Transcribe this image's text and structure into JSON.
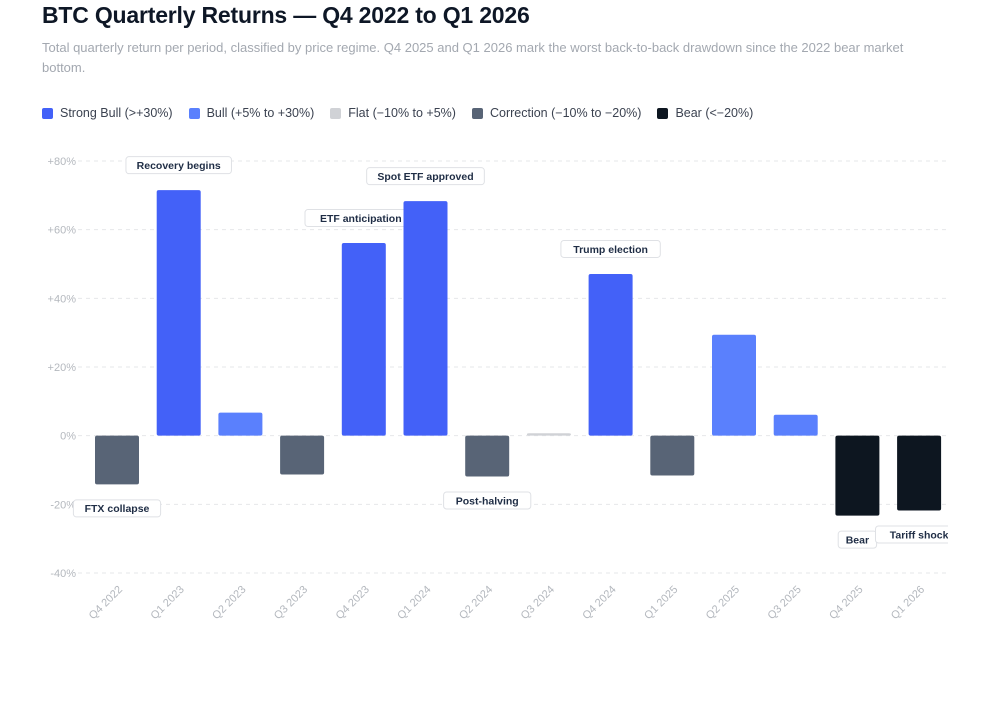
{
  "title": "BTC Quarterly Returns — Q4 2022 to Q1 2026",
  "subtitle": "Total quarterly return per period, classified by price regime. Q4 2025 and Q1 2026 mark the worst back-to-back drawdown since the 2022 bear market bottom.",
  "legend": [
    {
      "label": "Strong Bull (>+30%)",
      "color": "#4361f8"
    },
    {
      "label": "Bull (+5% to +30%)",
      "color": "#5a80fd"
    },
    {
      "label": "Flat (−10% to +5%)",
      "color": "#d0d2d6"
    },
    {
      "label": "Correction (−10% to −20%)",
      "color": "#586476"
    },
    {
      "label": "Bear (<−20%)",
      "color": "#0d1620"
    }
  ],
  "chart_data": {
    "type": "bar",
    "categories": [
      "Q4 2022",
      "Q1 2023",
      "Q2 2023",
      "Q3 2023",
      "Q4 2023",
      "Q1 2024",
      "Q2 2024",
      "Q3 2024",
      "Q4 2024",
      "Q1 2025",
      "Q2 2025",
      "Q3 2025",
      "Q4 2025",
      "Q1 2026"
    ],
    "values": [
      -14.2,
      71.5,
      6.7,
      -11.3,
      56.1,
      68.3,
      -11.9,
      0.7,
      47.1,
      -11.6,
      29.4,
      6.1,
      -23.3,
      -21.8
    ],
    "regimes": [
      "Correction",
      "Strong Bull",
      "Bull",
      "Correction",
      "Strong Bull",
      "Strong Bull",
      "Correction",
      "Flat",
      "Strong Bull",
      "Correction",
      "Bull",
      "Bull",
      "Bear",
      "Bear"
    ],
    "annotations": [
      "FTX collapse",
      "Recovery begins",
      "",
      "",
      "ETF anticipation",
      "Spot ETF approved",
      "Post-halving",
      "",
      "Trump election",
      "",
      "",
      "",
      "Bear",
      "Tariff shock"
    ],
    "ylim": [
      -40,
      80
    ],
    "yticks": [
      -40,
      -20,
      0,
      20,
      40,
      60,
      80
    ],
    "ytick_labels": [
      "-40%",
      "-20%",
      "0%",
      "+20%",
      "+40%",
      "+60%",
      "+80%"
    ],
    "grid": true,
    "legend_position": "top-left",
    "xlabel": "",
    "ylabel": ""
  }
}
